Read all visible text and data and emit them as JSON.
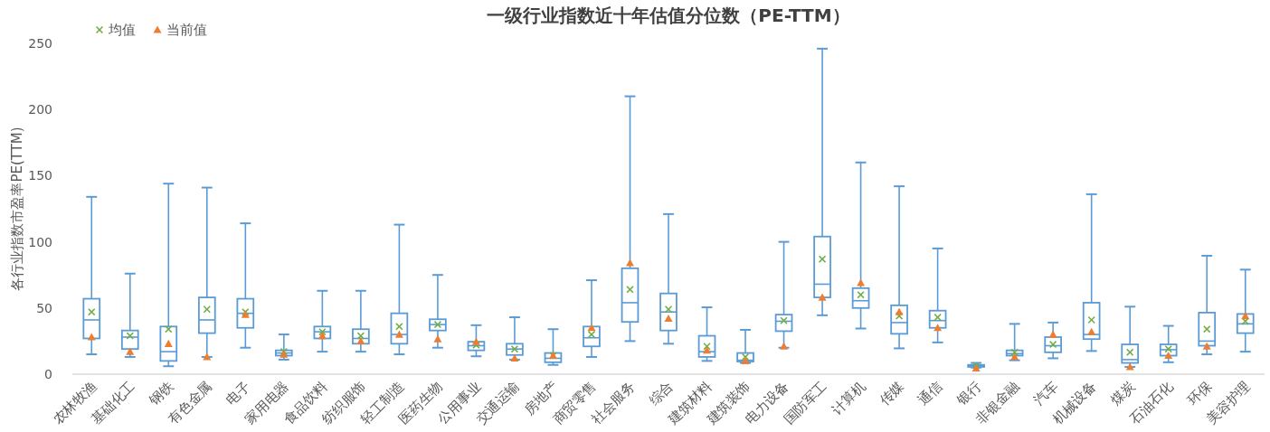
{
  "chart_data": {
    "type": "box",
    "title": "一级行业指数近十年估值分位数（PE-TTM）",
    "ylabel": "各行业指数市盈率PE(TTM)",
    "categories": [
      "农林牧渔",
      "基础化工",
      "钢铁",
      "有色金属",
      "电子",
      "家用电器",
      "食品饮料",
      "纺织服饰",
      "轻工制造",
      "医药生物",
      "公用事业",
      "交通运输",
      "房地产",
      "商贸零售",
      "社会服务",
      "综合",
      "建筑材料",
      "建筑装饰",
      "电力设备",
      "国防军工",
      "计算机",
      "传媒",
      "通信",
      "银行",
      "非银金融",
      "汽车",
      "机械设备",
      "煤炭",
      "石油石化",
      "环保",
      "美容护理"
    ],
    "color": "#5b9bd5",
    "boxes": [
      {
        "low": 15,
        "q1": 27,
        "median": 41,
        "q3": 57,
        "high": 134
      },
      {
        "low": 13,
        "q1": 19,
        "median": 28,
        "q3": 33,
        "high": 76
      },
      {
        "low": 6,
        "q1": 10,
        "median": 17,
        "q3": 36,
        "high": 144
      },
      {
        "low": 13,
        "q1": 31,
        "median": 41,
        "q3": 58,
        "high": 141
      },
      {
        "low": 20,
        "q1": 35,
        "median": 46,
        "q3": 57,
        "high": 114
      },
      {
        "low": 11,
        "q1": 14,
        "median": 16,
        "q3": 18,
        "high": 30
      },
      {
        "low": 17,
        "q1": 27,
        "median": 32,
        "q3": 36,
        "high": 63
      },
      {
        "low": 17,
        "q1": 23,
        "median": 27,
        "q3": 34,
        "high": 63
      },
      {
        "low": 15,
        "q1": 23,
        "median": 30,
        "q3": 46,
        "high": 113
      },
      {
        "low": 20,
        "q1": 33,
        "median": 37.5,
        "q3": 41.5,
        "high": 75
      },
      {
        "low": 13.5,
        "q1": 18,
        "median": 21.5,
        "q3": 24.5,
        "high": 37
      },
      {
        "low": 11,
        "q1": 14.5,
        "median": 19,
        "q3": 23,
        "high": 43
      },
      {
        "low": 7,
        "q1": 9,
        "median": 12,
        "q3": 16,
        "high": 34
      },
      {
        "low": 13,
        "q1": 21,
        "median": 27.5,
        "q3": 36,
        "high": 71
      },
      {
        "low": 25,
        "q1": 39.5,
        "median": 54,
        "q3": 80,
        "high": 210
      },
      {
        "low": 23,
        "q1": 33,
        "median": 47,
        "q3": 61,
        "high": 121
      },
      {
        "low": 10,
        "q1": 13,
        "median": 17,
        "q3": 29,
        "high": 50.5
      },
      {
        "low": 8.5,
        "q1": 9.5,
        "median": 10.5,
        "q3": 16,
        "high": 33.5
      },
      {
        "low": 20,
        "q1": 32.5,
        "median": 40,
        "q3": 45,
        "high": 100
      },
      {
        "low": 44.5,
        "q1": 58,
        "median": 68,
        "q3": 104,
        "high": 246
      },
      {
        "low": 34.5,
        "q1": 50,
        "median": 55.5,
        "q3": 65,
        "high": 160
      },
      {
        "low": 19.5,
        "q1": 30.5,
        "median": 39,
        "q3": 52,
        "high": 142
      },
      {
        "low": 24,
        "q1": 35,
        "median": 40.5,
        "q3": 48,
        "high": 95
      },
      {
        "low": 5,
        "q1": 5.5,
        "median": 6.5,
        "q3": 7,
        "high": 8.5
      },
      {
        "low": 10.5,
        "q1": 14,
        "median": 15.5,
        "q3": 18,
        "high": 38
      },
      {
        "low": 12,
        "q1": 16.5,
        "median": 21.5,
        "q3": 28,
        "high": 39
      },
      {
        "low": 17.5,
        "q1": 26.5,
        "median": 30,
        "q3": 54,
        "high": 136
      },
      {
        "low": 5.5,
        "q1": 8.5,
        "median": 11,
        "q3": 22.5,
        "high": 51
      },
      {
        "low": 9,
        "q1": 14,
        "median": 18.5,
        "q3": 22.5,
        "high": 36.5
      },
      {
        "low": 15,
        "q1": 21.5,
        "median": 25,
        "q3": 46.5,
        "high": 89.5
      },
      {
        "low": 17,
        "q1": 31,
        "median": 38,
        "q3": 45.5,
        "high": 79
      }
    ],
    "series": [
      {
        "name": "均值",
        "type": "scatter",
        "marker": "cross",
        "color": "#70ad47",
        "x": [
          "农林牧渔",
          "基础化工",
          "钢铁",
          "有色金属",
          "电子",
          "家用电器",
          "食品饮料",
          "纺织服饰",
          "轻工制造",
          "医药生物",
          "公用事业",
          "交通运输",
          "房地产",
          "商贸零售",
          "社会服务",
          "综合",
          "建筑材料",
          "建筑装饰",
          "电力设备",
          "国防军工",
          "计算机",
          "传媒",
          "通信",
          "银行",
          "非银金融",
          "汽车",
          "机械设备",
          "煤炭",
          "石油石化",
          "环保",
          "美容护理"
        ],
        "values": [
          47,
          29,
          34,
          49,
          47,
          17,
          32,
          29,
          36,
          37.5,
          22,
          19,
          14,
          30,
          64,
          49,
          21,
          13,
          40.5,
          87,
          60,
          44,
          43,
          6.5,
          16.5,
          22.5,
          41,
          16.5,
          19,
          34,
          40
        ]
      },
      {
        "name": "当前值",
        "type": "scatter",
        "marker": "triangle",
        "color": "#ed7d31",
        "x": [
          "农林牧渔",
          "基础化工",
          "钢铁",
          "有色金属",
          "电子",
          "家用电器",
          "食品饮料",
          "纺织服饰",
          "轻工制造",
          "医药生物",
          "公用事业",
          "交通运输",
          "房地产",
          "商贸零售",
          "社会服务",
          "综合",
          "建筑材料",
          "建筑装饰",
          "电力设备",
          "国防军工",
          "计算机",
          "传媒",
          "通信",
          "银行",
          "非银金融",
          "汽车",
          "机械设备",
          "煤炭",
          "石油石化",
          "环保",
          "美容护理"
        ],
        "values": [
          28,
          17,
          23,
          13,
          45,
          15,
          29,
          25,
          30,
          26.5,
          24.5,
          12,
          14,
          35,
          84,
          42,
          18,
          10,
          21,
          58,
          69,
          47,
          35,
          4.5,
          13,
          30,
          32,
          5.5,
          14,
          21,
          44
        ]
      }
    ],
    "ylim": [
      0,
      250
    ],
    "yticks": [
      0,
      50,
      100,
      150,
      200,
      250
    ],
    "grid": false,
    "legend": "top left"
  }
}
